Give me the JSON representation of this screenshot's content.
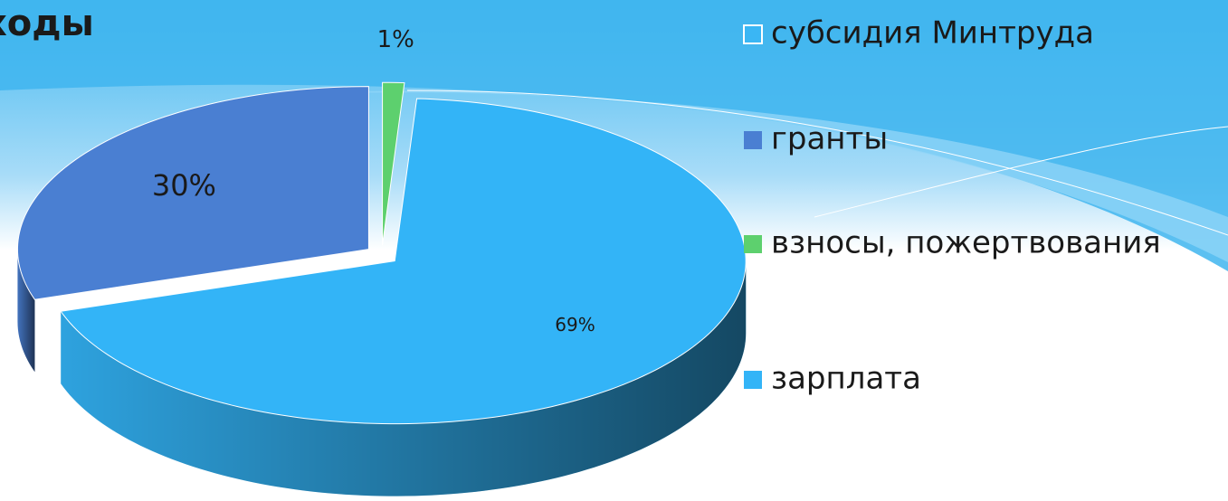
{
  "chart_data": {
    "type": "pie3d",
    "title": "ходы",
    "categories": [
      "субсидия Минтруда",
      "гранты",
      "взносы, пожертвования",
      "зарплата"
    ],
    "values": [
      0,
      30,
      1,
      69
    ],
    "value_labels": [
      null,
      "30%",
      "1%",
      "69%"
    ],
    "colors": [
      "#3ab6f4",
      "#4a7fd2",
      "#5dd06e",
      "#33b4f7"
    ],
    "legend": "right"
  }
}
